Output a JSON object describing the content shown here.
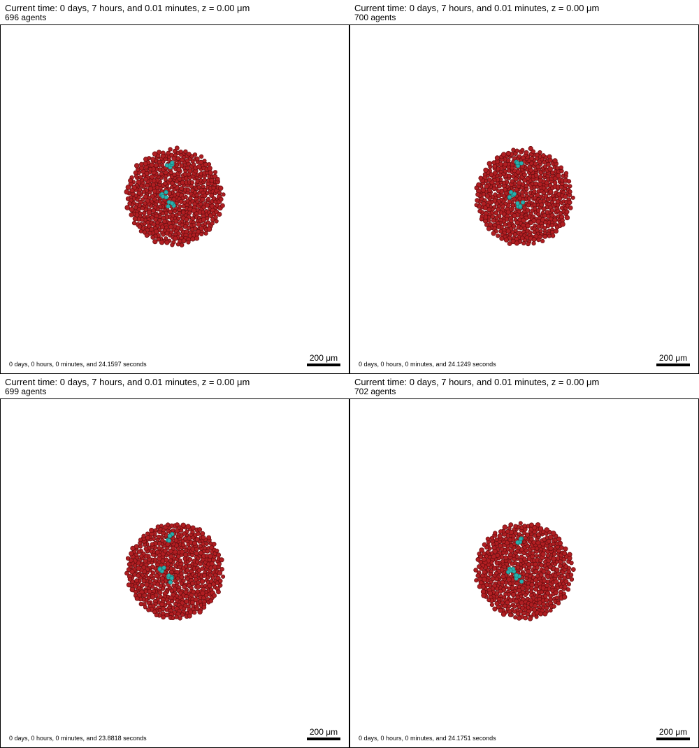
{
  "colors": {
    "tumor_cell": "#b01e22",
    "tumor_outline": "#6a0e10",
    "immune_cell": "#2ab0ad",
    "immune_outline": "#137774"
  },
  "panels": [
    {
      "title": "Current time: 0 days, 7 hours, and 0.01 minutes, z = 0.00 μm",
      "agents": "696 agents",
      "runtime": "0 days, 0 hours, 0 minutes, and 24.1597 seconds",
      "scale_bar": "200 μm"
    },
    {
      "title": "Current time: 0 days, 7 hours, and 0.01 minutes, z = 0.00 μm",
      "agents": "700 agents",
      "runtime": "0 days, 0 hours, 0 minutes, and 24.1249 seconds",
      "scale_bar": "200 μm"
    },
    {
      "title": "Current time: 0 days, 7 hours, and 0.01 minutes, z = 0.00 μm",
      "agents": "699 agents",
      "runtime": "0 days, 0 hours, 0 minutes, and 23.8818 seconds",
      "scale_bar": "200 μm"
    },
    {
      "title": "Current time: 0 days, 7 hours, and 0.01 minutes, z = 0.00 μm",
      "agents": "702 agents",
      "runtime": "0 days, 0 hours, 0 minutes, and 24.1751 seconds",
      "scale_bar": "200 μm"
    }
  ]
}
